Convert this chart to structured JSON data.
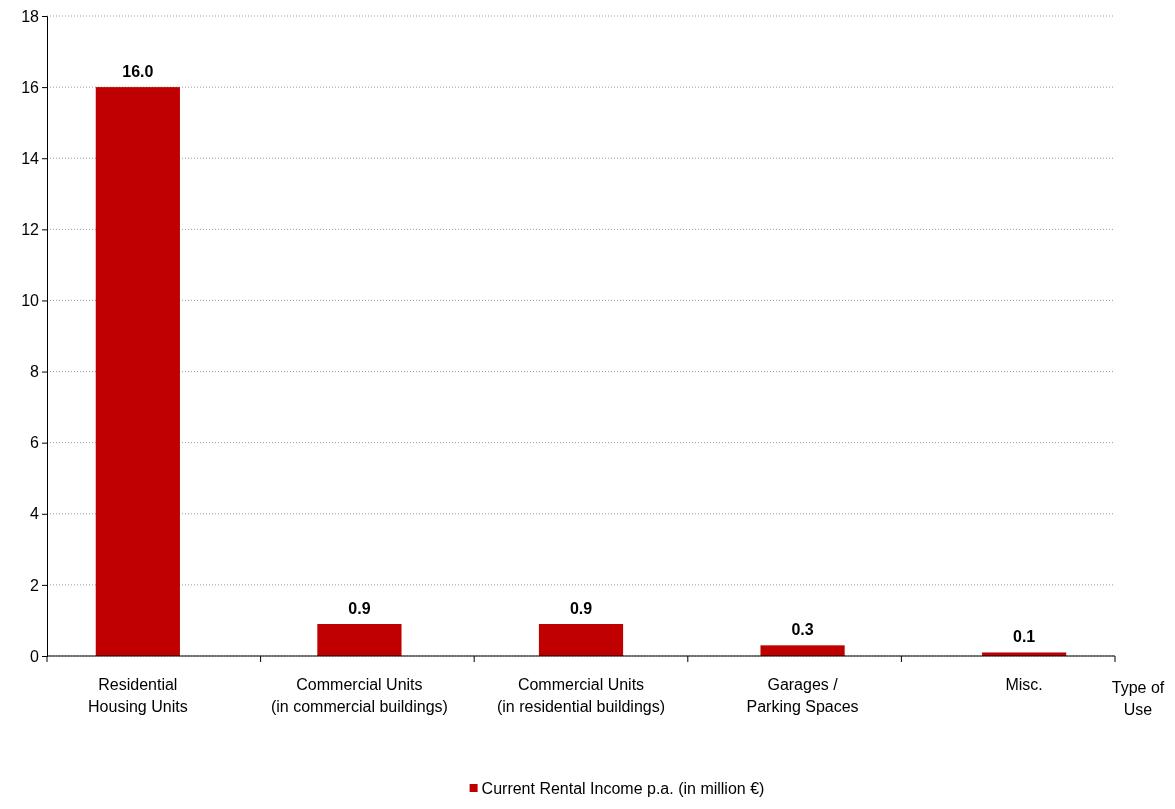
{
  "chart_data": {
    "type": "bar",
    "xlabel": "Type of Use",
    "categories": [
      "Residential\nHousing Units",
      "Commercial Units\n(in commercial buildings)",
      "Commercial Units\n(in residential buildings)",
      "Garages /\nParking Spaces",
      "Misc."
    ],
    "series": [
      {
        "name": "Current Rental Income p.a. (in million €)",
        "color": "#c00000",
        "values": [
          16.0,
          0.9,
          0.9,
          0.3,
          0.1
        ],
        "value_labels": [
          "16.0",
          "0.9",
          "0.9",
          "0.3",
          "0.1"
        ]
      }
    ],
    "ylim": [
      0,
      18
    ],
    "yticks": [
      0,
      2,
      4,
      6,
      8,
      10,
      12,
      14,
      16,
      18
    ],
    "grid": "y",
    "legend": "bottom"
  }
}
